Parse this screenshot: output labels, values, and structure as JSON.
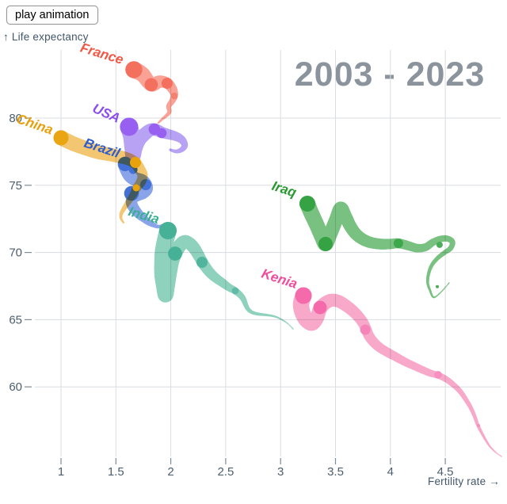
{
  "button": {
    "label": "play animation"
  },
  "colors": {
    "background": "#ffffff",
    "title": "#8b949d",
    "grid": "#dadde1",
    "tick": "#7f8b96",
    "tick_text": "#4d5e6c",
    "axis_text": "#42566a"
  },
  "chart_data": {
    "type": "scatter-trail",
    "title": "2003 - 2023",
    "xlabel": "Fertility rate →",
    "ylabel": "↑ Life expectancy",
    "x_ticks": [
      1,
      1.5,
      2,
      2.5,
      3,
      3.5,
      4,
      4.5
    ],
    "y_ticks": [
      80,
      75,
      70,
      65,
      60
    ],
    "xlim": [
      0.45,
      5.06
    ],
    "ylim": [
      54,
      85.5
    ],
    "grid": true,
    "legend_position": "inline-labels",
    "series": [
      {
        "name": "France",
        "label_text": "France",
        "label_pos": [
          1.361,
          84.48
        ],
        "label_rot": 17,
        "colors": {
          "body": "#f9a295",
          "marker": "#f3705e",
          "label": "#f25744"
        },
        "trail": [
          [
            1.664,
            83.6,
            10.7
          ],
          [
            1.743,
            83.24,
            9.6
          ],
          [
            1.822,
            82.48,
            8.5
          ],
          [
            1.895,
            82.71,
            7.8
          ],
          [
            1.967,
            82.59,
            7.0
          ],
          [
            2.017,
            82.12,
            5.8
          ],
          [
            2.032,
            81.65,
            4.6
          ],
          [
            2.01,
            81.24,
            3.8
          ],
          [
            1.981,
            80.88,
            3.2
          ],
          [
            1.988,
            80.47,
            2.6
          ],
          [
            1.96,
            80.18,
            2.1
          ],
          [
            1.924,
            79.94,
            1.6
          ],
          [
            1.887,
            79.65,
            1.1
          ]
        ],
        "markers": [
          [
            1.664,
            83.6,
            10.7,
            "#f3705e"
          ],
          [
            1.822,
            82.48,
            8.3,
            "#f3705e"
          ],
          [
            1.967,
            82.59,
            7.0,
            "#f3705e"
          ],
          [
            2.032,
            81.65,
            4.3,
            "#f4806f"
          ]
        ]
      },
      {
        "name": "USA",
        "label_text": "USA",
        "label_pos": [
          1.397,
          80.06
        ],
        "label_rot": 24,
        "colors": {
          "body": "#b7a2f3",
          "marker": "#9760f1",
          "label": "#8a4df0"
        },
        "trail": [
          [
            1.62,
            79.35,
            11.5
          ],
          [
            1.642,
            78.64,
            10.6
          ],
          [
            1.649,
            77.88,
            10.0
          ],
          [
            1.657,
            77.23,
            9.6
          ],
          [
            1.678,
            77.82,
            9.2
          ],
          [
            1.714,
            78.41,
            8.8
          ],
          [
            1.765,
            78.82,
            8.4
          ],
          [
            1.815,
            79.12,
            8.0
          ],
          [
            1.866,
            79.12,
            7.6
          ],
          [
            1.916,
            78.94,
            7.1
          ],
          [
            1.967,
            78.82,
            6.6
          ],
          [
            2.025,
            78.7,
            6.0
          ],
          [
            2.075,
            78.53,
            5.4
          ],
          [
            2.111,
            78.29,
            4.7
          ],
          [
            2.126,
            77.94,
            4.0
          ],
          [
            2.097,
            77.64,
            3.2
          ],
          [
            2.046,
            77.52,
            2.4
          ],
          [
            1.996,
            77.64,
            1.6
          ]
        ],
        "markers": [
          [
            1.62,
            79.35,
            11.5,
            "#9760f1"
          ],
          [
            1.851,
            79.17,
            7.3,
            "#9760f1"
          ],
          [
            1.916,
            78.88,
            6.3,
            "#9760f1"
          ]
        ]
      },
      {
        "name": "Brazil",
        "label_text": "Brazil",
        "label_pos": [
          1.361,
          77.46
        ],
        "label_rot": 18,
        "colors": {
          "body": "#8aa4e9",
          "marker": "#4371d7",
          "label": "#2c5cd0"
        },
        "trail": [
          [
            1.584,
            76.58,
            9.4
          ],
          [
            1.606,
            76.11,
            9.2
          ],
          [
            1.635,
            75.7,
            9.0
          ],
          [
            1.678,
            75.46,
            8.8
          ],
          [
            1.729,
            75.34,
            8.6
          ],
          [
            1.765,
            75.11,
            8.3
          ],
          [
            1.779,
            74.75,
            8.0
          ],
          [
            1.75,
            74.46,
            7.8
          ],
          [
            1.7,
            74.28,
            7.6
          ],
          [
            1.657,
            74.1,
            7.4
          ],
          [
            1.642,
            73.81,
            7.2
          ],
          [
            1.649,
            73.51,
            7.0
          ],
          [
            1.671,
            73.22,
            6.6
          ],
          [
            1.7,
            72.93,
            6.0
          ],
          [
            1.729,
            72.69,
            5.3
          ],
          [
            1.765,
            72.45,
            4.6
          ],
          [
            1.801,
            72.22,
            3.8
          ],
          [
            1.844,
            72.04,
            3.0
          ],
          [
            1.887,
            71.92,
            2.2
          ],
          [
            1.931,
            72.04,
            1.4
          ]
        ],
        "markers": [
          [
            1.584,
            76.58,
            9.0,
            "#4371d7"
          ],
          [
            1.657,
            76.17,
            5.5,
            "#4371d7"
          ],
          [
            1.772,
            75.05,
            7.0,
            "#4371d7"
          ],
          [
            1.642,
            74.4,
            9.3,
            "#4371d7"
          ]
        ]
      },
      {
        "name": "China",
        "label_text": "China",
        "label_pos": [
          0.748,
          79.23
        ],
        "label_rot": 19,
        "colors": {
          "body": "#f3c671",
          "marker": "#e9a512",
          "label": "#e7a00b"
        },
        "trail": [
          [
            1.0,
            78.53,
            9.5
          ],
          [
            1.108,
            78.11,
            9.2
          ],
          [
            1.224,
            77.76,
            9.0
          ],
          [
            1.339,
            77.46,
            8.7
          ],
          [
            1.447,
            77.29,
            8.4
          ],
          [
            1.541,
            77.11,
            8.1
          ],
          [
            1.62,
            76.93,
            7.7
          ],
          [
            1.678,
            76.64,
            7.3
          ],
          [
            1.714,
            76.23,
            6.9
          ],
          [
            1.743,
            75.75,
            6.5
          ],
          [
            1.729,
            75.28,
            6.1
          ],
          [
            1.7,
            74.93,
            5.6
          ],
          [
            1.678,
            74.63,
            5.1
          ],
          [
            1.657,
            74.28,
            4.6
          ],
          [
            1.628,
            73.93,
            4.0
          ],
          [
            1.599,
            73.57,
            3.4
          ],
          [
            1.57,
            73.22,
            2.8
          ],
          [
            1.548,
            72.87,
            2.2
          ],
          [
            1.548,
            72.51,
            1.6
          ],
          [
            1.57,
            72.22,
            1.1
          ]
        ],
        "markers": [
          [
            1.0,
            78.53,
            9.5,
            "#e9a512"
          ],
          [
            1.678,
            76.7,
            7.0,
            "#e8a30c"
          ],
          [
            1.685,
            74.81,
            4.5,
            "#e8a30c"
          ]
        ]
      },
      {
        "name": "India",
        "label_text": "India",
        "label_pos": [
          1.743,
          72.45
        ],
        "label_rot": 16,
        "colors": {
          "body": "#8ed1bd",
          "marker": "#46b197",
          "label": "#3cae93"
        },
        "trail": [
          [
            1.974,
            71.63,
            11.0
          ],
          [
            1.952,
            70.92,
            10.7
          ],
          [
            1.931,
            70.09,
            10.5
          ],
          [
            1.924,
            69.21,
            10.3
          ],
          [
            1.924,
            68.32,
            10.1
          ],
          [
            1.938,
            67.5,
            9.9
          ],
          [
            1.952,
            66.85,
            9.7
          ],
          [
            1.967,
            67.44,
            9.5
          ],
          [
            1.988,
            68.44,
            9.3
          ],
          [
            2.01,
            69.33,
            9.1
          ],
          [
            2.039,
            69.92,
            8.9
          ],
          [
            2.082,
            70.51,
            8.6
          ],
          [
            2.126,
            70.8,
            8.3
          ],
          [
            2.169,
            70.68,
            8.0
          ],
          [
            2.212,
            70.33,
            7.7
          ],
          [
            2.248,
            69.86,
            7.4
          ],
          [
            2.284,
            69.33,
            7.1
          ],
          [
            2.327,
            68.8,
            6.7
          ],
          [
            2.371,
            68.38,
            6.3
          ],
          [
            2.421,
            68.03,
            5.9
          ],
          [
            2.472,
            67.74,
            5.5
          ],
          [
            2.522,
            67.44,
            5.0
          ],
          [
            2.573,
            67.21,
            4.6
          ],
          [
            2.623,
            66.91,
            4.1
          ],
          [
            2.659,
            66.56,
            3.6
          ],
          [
            2.681,
            66.14,
            3.1
          ],
          [
            2.703,
            65.79,
            2.7
          ],
          [
            2.739,
            65.55,
            2.3
          ],
          [
            2.789,
            65.43,
            2.0
          ],
          [
            2.847,
            65.37,
            1.7
          ],
          [
            2.905,
            65.31,
            1.4
          ],
          [
            2.962,
            65.2,
            1.2
          ],
          [
            3.02,
            64.96,
            1.0
          ],
          [
            3.071,
            64.67,
            0.8
          ],
          [
            3.114,
            64.31,
            0.7
          ]
        ],
        "markers": [
          [
            1.974,
            71.63,
            11.0,
            "#46b197"
          ],
          [
            2.039,
            69.92,
            8.9,
            "#46b197"
          ],
          [
            2.284,
            69.27,
            7.0,
            "#51b59d"
          ],
          [
            2.587,
            67.15,
            4.4,
            "#60bba6"
          ]
        ]
      },
      {
        "name": "Iraq",
        "label_text": "Iraq",
        "label_pos": [
          3.02,
          74.4
        ],
        "label_rot": 18,
        "colors": {
          "body": "#79c180",
          "marker": "#35a244",
          "label": "#27992f"
        },
        "trail": [
          [
            3.244,
            73.63,
            10.0
          ],
          [
            3.28,
            72.92,
            9.8
          ],
          [
            3.33,
            72.04,
            9.6
          ],
          [
            3.373,
            71.21,
            9.4
          ],
          [
            3.41,
            70.63,
            9.2
          ],
          [
            3.453,
            71.39,
            9.0
          ],
          [
            3.503,
            72.39,
            8.8
          ],
          [
            3.547,
            73.28,
            8.6
          ],
          [
            3.59,
            72.69,
            8.3
          ],
          [
            3.633,
            71.98,
            8.0
          ],
          [
            3.684,
            71.39,
            7.7
          ],
          [
            3.749,
            70.98,
            7.4
          ],
          [
            3.821,
            70.74,
            7.1
          ],
          [
            3.907,
            70.63,
            6.8
          ],
          [
            3.994,
            70.63,
            6.5
          ],
          [
            4.073,
            70.68,
            6.2
          ],
          [
            4.16,
            70.51,
            5.8
          ],
          [
            4.239,
            70.33,
            5.4
          ],
          [
            4.319,
            70.39,
            5.0
          ],
          [
            4.384,
            70.74,
            4.6
          ],
          [
            4.448,
            70.98,
            4.2
          ],
          [
            4.513,
            71.04,
            3.9
          ],
          [
            4.564,
            70.8,
            3.6
          ],
          [
            4.549,
            70.33,
            3.3
          ],
          [
            4.492,
            69.98,
            3.0
          ],
          [
            4.427,
            69.56,
            2.7
          ],
          [
            4.376,
            69.03,
            2.4
          ],
          [
            4.347,
            68.38,
            2.1
          ],
          [
            4.34,
            67.74,
            1.8
          ],
          [
            4.362,
            67.15,
            1.5
          ],
          [
            4.391,
            66.67,
            1.2
          ],
          [
            4.434,
            66.85,
            0.9
          ],
          [
            4.485,
            67.26,
            0.8
          ],
          [
            4.535,
            67.74,
            0.7
          ]
        ],
        "markers": [
          [
            3.244,
            73.63,
            10.0,
            "#35a244"
          ],
          [
            3.41,
            70.63,
            9.0,
            "#35a244"
          ],
          [
            4.073,
            70.68,
            6.0,
            "#3da74c"
          ],
          [
            4.448,
            70.57,
            4.0,
            "#4bad58"
          ],
          [
            4.427,
            67.45,
            2.0,
            "#4bad58"
          ]
        ]
      },
      {
        "name": "Kenia",
        "label_text": "Kenia",
        "label_pos": [
          2.977,
          67.74
        ],
        "label_rot": 18,
        "colors": {
          "body": "#f8a9ca",
          "marker": "#f46aab",
          "label": "#f24d9c"
        },
        "trail": [
          [
            3.208,
            66.79,
            10.5
          ],
          [
            3.186,
            66.14,
            10.2
          ],
          [
            3.201,
            65.49,
            10.0
          ],
          [
            3.237,
            64.96,
            9.7
          ],
          [
            3.287,
            64.73,
            9.4
          ],
          [
            3.33,
            65.14,
            9.1
          ],
          [
            3.359,
            65.79,
            8.8
          ],
          [
            3.402,
            66.2,
            8.5
          ],
          [
            3.46,
            66.44,
            8.2
          ],
          [
            3.525,
            66.38,
            7.9
          ],
          [
            3.59,
            66.08,
            7.6
          ],
          [
            3.655,
            65.67,
            7.3
          ],
          [
            3.705,
            65.26,
            7.1
          ],
          [
            3.749,
            64.79,
            6.9
          ],
          [
            3.778,
            64.31,
            6.7
          ],
          [
            3.806,
            63.78,
            6.5
          ],
          [
            3.85,
            63.31,
            6.3
          ],
          [
            3.907,
            62.9,
            6.0
          ],
          [
            3.98,
            62.54,
            5.8
          ],
          [
            4.059,
            62.19,
            5.5
          ],
          [
            4.138,
            61.84,
            5.2
          ],
          [
            4.218,
            61.54,
            5.0
          ],
          [
            4.297,
            61.25,
            4.7
          ],
          [
            4.369,
            61.01,
            4.5
          ],
          [
            4.441,
            60.84,
            4.2
          ],
          [
            4.513,
            60.54,
            3.9
          ],
          [
            4.578,
            60.13,
            3.6
          ],
          [
            4.636,
            59.66,
            3.3
          ],
          [
            4.686,
            59.07,
            3.0
          ],
          [
            4.73,
            58.48,
            2.7
          ],
          [
            4.766,
            57.83,
            2.4
          ],
          [
            4.795,
            57.18,
            2.1
          ],
          [
            4.831,
            56.59,
            1.8
          ],
          [
            4.867,
            56.06,
            1.5
          ],
          [
            4.91,
            55.53,
            1.2
          ],
          [
            4.961,
            55.12,
            0.9
          ],
          [
            5.011,
            54.82,
            0.7
          ]
        ],
        "markers": [
          [
            3.208,
            66.79,
            10.5,
            "#f46aab"
          ],
          [
            3.359,
            65.91,
            8.5,
            "#f46aab"
          ],
          [
            3.771,
            64.26,
            6.5,
            "#f584b9"
          ],
          [
            4.434,
            60.9,
            4.8,
            "#f78fc0"
          ],
          [
            4.802,
            57.12,
            2.0,
            "#f78fc0"
          ]
        ]
      }
    ]
  }
}
